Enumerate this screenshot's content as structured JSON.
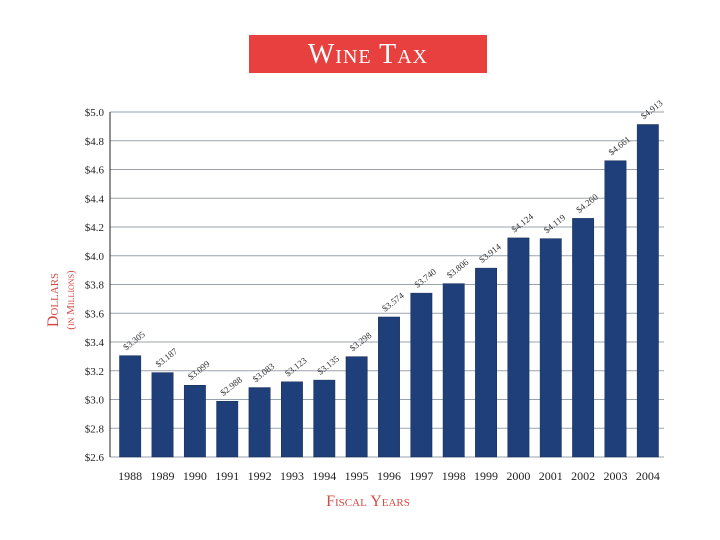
{
  "chart_data": {
    "type": "bar",
    "title": "Wine Tax",
    "xlabel": "Fiscal Years",
    "ylabel": "Dollars",
    "ylabel_sub": "(in Millions)",
    "ylim": [
      2.6,
      5.0
    ],
    "yticks": [
      2.6,
      2.8,
      3.0,
      3.2,
      3.4,
      3.6,
      3.8,
      4.0,
      4.2,
      4.4,
      4.6,
      4.8,
      5.0
    ],
    "ytick_labels": [
      "$2.6",
      "$2.8",
      "$3.0",
      "$3.2",
      "$3.4",
      "$3.6",
      "$3.8",
      "$4.0",
      "$4.2",
      "$4.4",
      "$4.6",
      "$4.8",
      "$5.0"
    ],
    "categories": [
      "1988",
      "1989",
      "1990",
      "1991",
      "1992",
      "1993",
      "1994",
      "1995",
      "1996",
      "1997",
      "1998",
      "1999",
      "2000",
      "2001",
      "2002",
      "2003",
      "2004"
    ],
    "values": [
      3.305,
      3.187,
      3.099,
      2.988,
      3.083,
      3.123,
      3.135,
      3.298,
      3.574,
      3.74,
      3.806,
      3.914,
      4.124,
      4.119,
      4.26,
      4.661,
      4.913
    ],
    "data_labels": [
      "$3.305",
      "$3.187",
      "$3.099",
      "$2.988",
      "$3.083",
      "$3.123",
      "$3.135",
      "$3.298",
      "$3.574",
      "$3.740",
      "$3.806",
      "$3.914",
      "$4.124",
      "$4.119",
      "$4.260",
      "$4.661",
      "$4.913"
    ],
    "grid": true,
    "legend": false,
    "colors": {
      "bar": "#1f3f7a",
      "title_banner": "#e8403e",
      "axis_label": "#d64a45"
    }
  }
}
